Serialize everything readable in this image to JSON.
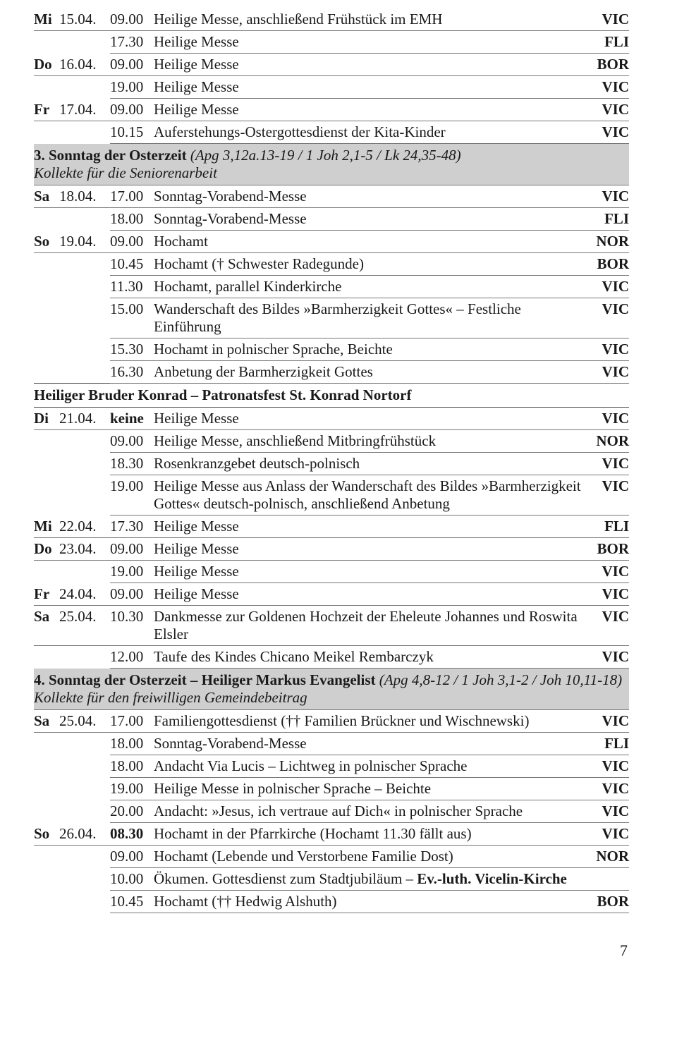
{
  "page_number": "7",
  "rows": [
    {
      "day": "Mi",
      "date": "15.04.",
      "time": "09.00",
      "desc": "Heilige Messe, anschließend Frühstück im EMH",
      "code": "VIC"
    },
    {
      "day": "",
      "date": "",
      "time": "17.30",
      "desc": "Heilige Messe",
      "code": "FLI"
    },
    {
      "day": "Do",
      "date": "16.04.",
      "time": "09.00",
      "desc": "Heilige Messe",
      "code": "BOR"
    },
    {
      "day": "",
      "date": "",
      "time": "19.00",
      "desc": "Heilige Messe",
      "code": "VIC"
    },
    {
      "day": "Fr",
      "date": "17.04.",
      "time": "09.00",
      "desc": "Heilige Messe",
      "code": "VIC"
    },
    {
      "day": "",
      "date": "",
      "time": "10.15",
      "desc": "Auferstehungs-Ostergottesdienst der Kita-Kinder",
      "code": "VIC"
    }
  ],
  "section1": {
    "title": "3. Sonntag der Osterzeit",
    "ref": "(Apg 3,12a.13-19 / 1 Joh 2,1-5 / Lk 24,35-48)",
    "sub": "Kollekte für die Seniorenarbeit"
  },
  "rows2": [
    {
      "day": "Sa",
      "date": "18.04.",
      "time": "17.00",
      "desc": "Sonntag-Vorabend-Messe",
      "code": "VIC"
    },
    {
      "day": "",
      "date": "",
      "time": "18.00",
      "desc": "Sonntag-Vorabend-Messe",
      "code": "FLI"
    },
    {
      "day": "So",
      "date": "19.04.",
      "time": "09.00",
      "desc": "Hochamt",
      "code": "NOR"
    },
    {
      "day": "",
      "date": "",
      "time": "10.45",
      "desc": "Hochamt († Schwester Radegunde)",
      "code": "BOR"
    },
    {
      "day": "",
      "date": "",
      "time": "11.30",
      "desc": "Hochamt, parallel Kinderkirche",
      "code": "VIC"
    },
    {
      "day": "",
      "date": "",
      "time": "15.00",
      "desc": "Wanderschaft des Bildes »Barmherzigkeit Gottes« – Festliche Einführung",
      "code": "VIC"
    },
    {
      "day": "",
      "date": "",
      "time": "15.30",
      "desc": "Hochamt in polnischer Sprache, Beichte",
      "code": "VIC"
    },
    {
      "day": "",
      "date": "",
      "time": "16.30",
      "desc": "Anbetung der Barmherzigkeit Gottes",
      "code": "VIC"
    }
  ],
  "heading1": "Heiliger Bruder Konrad – Patronatsfest St. Konrad Nortorf",
  "rows3": [
    {
      "day": "Di",
      "date": "21.04.",
      "time": "keine",
      "desc": "Heilige Messe",
      "code": "VIC",
      "time_bold": true
    },
    {
      "day": "",
      "date": "",
      "time": "09.00",
      "desc": "Heilige Messe, anschließend Mitbringfrühstück",
      "code": "NOR"
    },
    {
      "day": "",
      "date": "",
      "time": "18.30",
      "desc": "Rosenkranzgebet deutsch-polnisch",
      "code": "VIC"
    },
    {
      "day": "",
      "date": "",
      "time": "19.00",
      "desc": "Heilige Messe aus Anlass der Wanderschaft des Bildes »Barmherzigkeit Gottes« deutsch-polnisch, anschließend Anbetung",
      "code": "VIC"
    },
    {
      "day": "Mi",
      "date": "22.04.",
      "time": "17.30",
      "desc": "Heilige Messe",
      "code": "FLI"
    },
    {
      "day": "Do",
      "date": "23.04.",
      "time": "09.00",
      "desc": "Heilige Messe",
      "code": "BOR"
    },
    {
      "day": "",
      "date": "",
      "time": "19.00",
      "desc": "Heilige Messe",
      "code": "VIC"
    },
    {
      "day": "Fr",
      "date": "24.04.",
      "time": "09.00",
      "desc": "Heilige Messe",
      "code": "VIC"
    },
    {
      "day": "Sa",
      "date": "25.04.",
      "time": "10.30",
      "desc": "Dankmesse zur Goldenen Hochzeit der Eheleute Johannes und Roswita Elsler",
      "code": "VIC"
    },
    {
      "day": "",
      "date": "",
      "time": "12.00",
      "desc": "Taufe des Kindes Chicano Meikel Rembarczyk",
      "code": "VIC"
    }
  ],
  "section2": {
    "title": "4. Sonntag der Osterzeit – Heiliger Markus Evangelist",
    "ref": "(Apg 4,8-12 / 1 Joh 3,1-2 / Joh 10,11-18)",
    "sub": "Kollekte für den freiwilligen Gemeindebeitrag"
  },
  "rows4": [
    {
      "day": "Sa",
      "date": "25.04.",
      "time": "17.00",
      "desc": "Familiengottesdienst (†† Familien Brückner und Wischnewski)",
      "code": "VIC"
    },
    {
      "day": "",
      "date": "",
      "time": "18.00",
      "desc": "Sonntag-Vorabend-Messe",
      "code": "FLI"
    },
    {
      "day": "",
      "date": "",
      "time": "18.00",
      "desc": "Andacht Via Lucis – Lichtweg in polnischer Sprache",
      "code": "VIC"
    },
    {
      "day": "",
      "date": "",
      "time": "19.00",
      "desc": "Heilige Messe in polnischer Sprache – Beichte",
      "code": "VIC"
    },
    {
      "day": "",
      "date": "",
      "time": "20.00",
      "desc": "Andacht: »Jesus, ich vertraue auf Dich« in polnischer Sprache",
      "code": "VIC"
    },
    {
      "day": "So",
      "date": "26.04.",
      "time": "08.30",
      "desc": "Hochamt in der Pfarrkirche (Hochamt 11.30 fällt aus)",
      "code": "VIC",
      "time_bold": true
    },
    {
      "day": "",
      "date": "",
      "time": "09.00",
      "desc": "Hochamt (Lebende und Verstorbene Familie Dost)",
      "code": "NOR"
    }
  ],
  "row_special_1": {
    "day": "",
    "date": "",
    "time": "10.00",
    "desc_pre": "Ökumen. Gottesdienst zum Stadtjubiläum – ",
    "desc_bold": "Ev.-luth. Vicelin-Kirche",
    "code": ""
  },
  "row_last": {
    "day": "",
    "date": "",
    "time": "10.45",
    "desc": "Hochamt (†† Hedwig Alshuth)",
    "code": "BOR"
  }
}
